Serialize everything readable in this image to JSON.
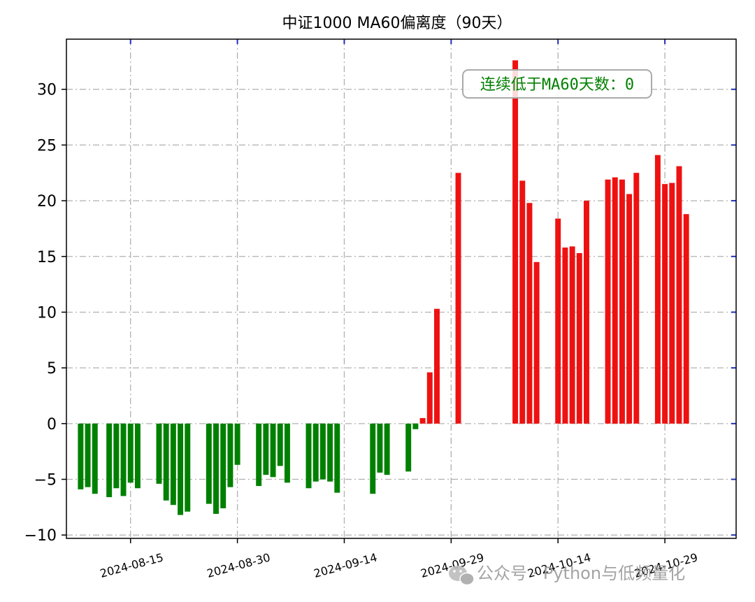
{
  "chart_data": {
    "type": "bar",
    "title": "中证1000 MA60偏离度（90天）",
    "annotation": "连续低于MA60天数：0",
    "annotation_color": "#008000",
    "positive_color": "#ee1111",
    "negative_color": "#008000",
    "grid": true,
    "ylim": [
      -10.3,
      34.5
    ],
    "yticks": [
      -10,
      -5,
      0,
      5,
      10,
      15,
      20,
      25,
      30
    ],
    "ytick_labels": [
      "−10",
      "−5",
      "0",
      "5",
      "10",
      "15",
      "20",
      "25",
      "30"
    ],
    "xlim": [
      "2024-08-06",
      "2024-11-08"
    ],
    "xticks": [
      "2024-08-15",
      "2024-08-30",
      "2024-09-14",
      "2024-09-29",
      "2024-10-14",
      "2024-10-29"
    ],
    "points": [
      {
        "date": "2024-08-08",
        "value": -5.9
      },
      {
        "date": "2024-08-09",
        "value": -5.7
      },
      {
        "date": "2024-08-10",
        "value": -6.3
      },
      {
        "date": "2024-08-12",
        "value": -6.6
      },
      {
        "date": "2024-08-13",
        "value": -5.8
      },
      {
        "date": "2024-08-14",
        "value": -6.5
      },
      {
        "date": "2024-08-15",
        "value": -5.3
      },
      {
        "date": "2024-08-16",
        "value": -5.8
      },
      {
        "date": "2024-08-19",
        "value": -5.4
      },
      {
        "date": "2024-08-20",
        "value": -6.9
      },
      {
        "date": "2024-08-21",
        "value": -7.3
      },
      {
        "date": "2024-08-22",
        "value": -8.2
      },
      {
        "date": "2024-08-23",
        "value": -7.9
      },
      {
        "date": "2024-08-26",
        "value": -7.2
      },
      {
        "date": "2024-08-27",
        "value": -8.1
      },
      {
        "date": "2024-08-28",
        "value": -7.6
      },
      {
        "date": "2024-08-29",
        "value": -5.7
      },
      {
        "date": "2024-08-30",
        "value": -3.7
      },
      {
        "date": "2024-09-02",
        "value": -5.6
      },
      {
        "date": "2024-09-03",
        "value": -4.6
      },
      {
        "date": "2024-09-04",
        "value": -4.8
      },
      {
        "date": "2024-09-05",
        "value": -3.8
      },
      {
        "date": "2024-09-06",
        "value": -5.3
      },
      {
        "date": "2024-09-09",
        "value": -5.8
      },
      {
        "date": "2024-09-10",
        "value": -5.2
      },
      {
        "date": "2024-09-11",
        "value": -5.0
      },
      {
        "date": "2024-09-12",
        "value": -5.2
      },
      {
        "date": "2024-09-13",
        "value": -6.2
      },
      {
        "date": "2024-09-18",
        "value": -6.3
      },
      {
        "date": "2024-09-19",
        "value": -4.4
      },
      {
        "date": "2024-09-20",
        "value": -4.6
      },
      {
        "date": "2024-09-23",
        "value": -4.3
      },
      {
        "date": "2024-09-24",
        "value": -0.5
      },
      {
        "date": "2024-09-25",
        "value": 0.5
      },
      {
        "date": "2024-09-26",
        "value": 4.6
      },
      {
        "date": "2024-09-27",
        "value": 10.3
      },
      {
        "date": "2024-09-30",
        "value": 22.5
      },
      {
        "date": "2024-10-08",
        "value": 32.6
      },
      {
        "date": "2024-10-09",
        "value": 21.8
      },
      {
        "date": "2024-10-10",
        "value": 19.8
      },
      {
        "date": "2024-10-11",
        "value": 14.5
      },
      {
        "date": "2024-10-14",
        "value": 18.4
      },
      {
        "date": "2024-10-15",
        "value": 15.8
      },
      {
        "date": "2024-10-16",
        "value": 15.9
      },
      {
        "date": "2024-10-17",
        "value": 15.3
      },
      {
        "date": "2024-10-18",
        "value": 20.0
      },
      {
        "date": "2024-10-21",
        "value": 21.9
      },
      {
        "date": "2024-10-22",
        "value": 22.1
      },
      {
        "date": "2024-10-23",
        "value": 21.9
      },
      {
        "date": "2024-10-24",
        "value": 20.6
      },
      {
        "date": "2024-10-25",
        "value": 22.5
      },
      {
        "date": "2024-10-28",
        "value": 24.1
      },
      {
        "date": "2024-10-29",
        "value": 21.5
      },
      {
        "date": "2024-10-30",
        "value": 21.6
      },
      {
        "date": "2024-10-31",
        "value": 23.1
      },
      {
        "date": "2024-11-01",
        "value": 18.8
      }
    ]
  },
  "watermark": {
    "icon": "wechat-icon",
    "text": "公众号 · Python与低频量化"
  }
}
